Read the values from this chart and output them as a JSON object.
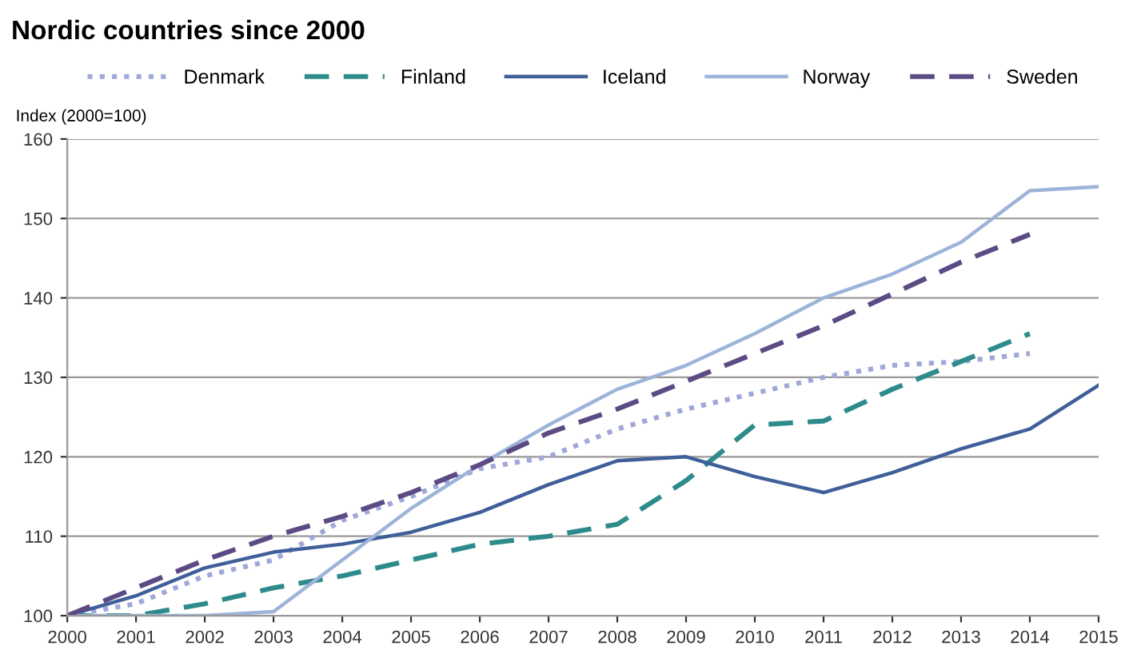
{
  "chart_data": {
    "type": "line",
    "title": "Nordic countries since 2000",
    "ylabel": "Index (2000=100)",
    "x": [
      2000,
      2001,
      2002,
      2003,
      2004,
      2005,
      2006,
      2007,
      2008,
      2009,
      2010,
      2011,
      2012,
      2013,
      2014,
      2015
    ],
    "xlim": [
      2000,
      2015
    ],
    "xticks": [
      2000,
      2001,
      2002,
      2003,
      2004,
      2005,
      2006,
      2007,
      2008,
      2009,
      2010,
      2011,
      2012,
      2013,
      2014,
      2015
    ],
    "ylim": [
      100,
      160
    ],
    "yticks": [
      100,
      110,
      120,
      130,
      140,
      150,
      160
    ],
    "grid": "y",
    "legend": "top",
    "marker": "none",
    "series": [
      {
        "name": "Denmark",
        "color": "#9fa8d8",
        "line_style": "dotted",
        "values": [
          100,
          101.5,
          105,
          107,
          112,
          115,
          118.5,
          120,
          123.5,
          126,
          128,
          130,
          131.5,
          132,
          133,
          null
        ]
      },
      {
        "name": "Finland",
        "color": "#2e8b8b",
        "line_style": "dashed",
        "values": [
          100,
          100,
          101.5,
          103.5,
          105,
          107,
          109,
          110,
          111.5,
          117,
          124,
          124.5,
          128.5,
          132,
          135.5,
          null
        ]
      },
      {
        "name": "Iceland",
        "color": "#3f5f9a",
        "line_style": "solid",
        "values": [
          100,
          102.5,
          106,
          108,
          109,
          110.5,
          113,
          116.5,
          119.5,
          120,
          117.5,
          115.5,
          118,
          121,
          123.5,
          129
        ]
      },
      {
        "name": "Norway",
        "color": "#9db4d9",
        "line_style": "solid",
        "values": [
          100,
          100,
          100,
          100.5,
          107,
          113.5,
          119,
          124,
          128.5,
          131.5,
          135.5,
          140,
          143,
          147,
          153.5,
          154
        ]
      },
      {
        "name": "Sweden",
        "color": "#5c4a85",
        "line_style": "dashed",
        "values": [
          100,
          103.5,
          107,
          110,
          112.5,
          115.5,
          119,
          123,
          126,
          129.5,
          133,
          136.5,
          140.5,
          144.5,
          148,
          null
        ]
      }
    ]
  }
}
